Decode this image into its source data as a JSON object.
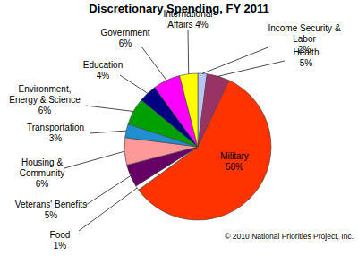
{
  "chart_data": {
    "type": "pie",
    "title": "Discretionary Spending, FY 2011",
    "categories": [
      "Income Security & Labor",
      "Health",
      "Military",
      "Food",
      "Veterans' Benefits",
      "Housing & Community",
      "Transportation",
      "Environment, Energy & Science",
      "Education",
      "Government",
      "International Affairs"
    ],
    "values": [
      2,
      5,
      58,
      1,
      5,
      6,
      3,
      6,
      4,
      6,
      4
    ],
    "value_labels": [
      "2%",
      "5%",
      "58%",
      "1%",
      "5%",
      "6%",
      "3%",
      "6%",
      "4%",
      "6%",
      "4%"
    ],
    "colors": [
      "#b8c4f4",
      "#993366",
      "#ff3300",
      "#ffffff",
      "#660066",
      "#ff9999",
      "#1f8fd0",
      "#00a000",
      "#000080",
      "#ff00ff",
      "#ffff00"
    ],
    "data_labels": true,
    "annotations": [
      "© 2010 National Priorities Project, Inc."
    ]
  }
}
